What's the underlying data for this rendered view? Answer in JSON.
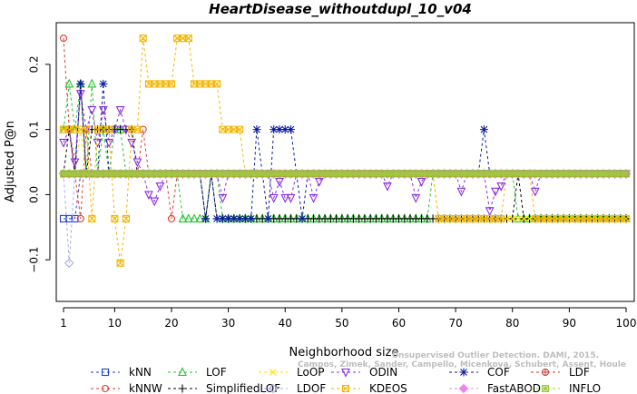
{
  "chart_data": {
    "type": "line",
    "title": "HeartDisease_withoutdupl_10_v04",
    "xlabel": "Neighborhood size",
    "ylabel": "Adjusted P@n",
    "xlim": [
      1,
      100
    ],
    "ylim": [
      -0.15,
      0.25
    ],
    "xticks": [
      1,
      10,
      20,
      30,
      40,
      50,
      60,
      70,
      80,
      90,
      100
    ],
    "yticks": [
      -0.1,
      0.0,
      0.1,
      0.2
    ],
    "ytick_labels": [
      "−0.1",
      "0.0",
      "0.1",
      "0.2"
    ],
    "grid": false,
    "legend_position": "bottom",
    "watermark": [
      "Campos, Zimek, Sander, Campello, Micenkova, Schubert, Assent, Houle",
      "Unsupervised Outlier Detection. DAMI, 2015."
    ],
    "series": [
      {
        "name": "kNN",
        "color": "#1f3fd6",
        "marker": "square",
        "segments": [
          [
            1,
            -0.037
          ],
          [
            3,
            -0.037
          ],
          [
            4,
            0.032
          ],
          [
            100,
            0.032
          ]
        ]
      },
      {
        "name": "kNNW",
        "color": "#e03a2a",
        "marker": "circle",
        "segments": [
          [
            1,
            0.24
          ],
          [
            2,
            0.1
          ],
          [
            3,
            0.032
          ],
          [
            4,
            -0.037
          ],
          [
            5,
            0.1
          ],
          [
            6,
            0.032
          ],
          [
            15,
            0.1
          ],
          [
            16,
            0.032
          ],
          [
            19,
            0.032
          ],
          [
            20,
            -0.037
          ],
          [
            21,
            0.032
          ],
          [
            100,
            0.032
          ]
        ]
      },
      {
        "name": "LOF",
        "color": "#21c42b",
        "marker": "triangle",
        "segments": [
          [
            1,
            0.1
          ],
          [
            2,
            0.17
          ],
          [
            3,
            0.1
          ],
          [
            4,
            0.17
          ],
          [
            5,
            0.032
          ],
          [
            6,
            0.17
          ],
          [
            7,
            0.032
          ],
          [
            8,
            0.1
          ],
          [
            9,
            0.032
          ],
          [
            10,
            0.1
          ],
          [
            12,
            0.032
          ],
          [
            20,
            0.032
          ],
          [
            22,
            -0.037
          ],
          [
            26,
            -0.037
          ],
          [
            27,
            0.032
          ],
          [
            29,
            -0.037
          ],
          [
            65,
            -0.037
          ],
          [
            66,
            0.032
          ],
          [
            80,
            0.032
          ],
          [
            81,
            -0.037
          ],
          [
            100,
            -0.037
          ]
        ]
      },
      {
        "name": "SimplifiedLOF",
        "color": "#000000",
        "marker": "plus",
        "segments": [
          [
            1,
            0.032
          ],
          [
            2,
            0.1
          ],
          [
            3,
            0.032
          ],
          [
            4,
            0.17
          ],
          [
            5,
            0.032
          ],
          [
            6,
            0.1
          ],
          [
            13,
            0.1
          ],
          [
            14,
            0.032
          ],
          [
            25,
            0.032
          ],
          [
            26,
            -0.037
          ],
          [
            27,
            0.032
          ],
          [
            28,
            -0.037
          ],
          [
            80,
            -0.037
          ],
          [
            81,
            0.032
          ],
          [
            82,
            -0.037
          ],
          [
            100,
            -0.037
          ]
        ]
      },
      {
        "name": "LoOP",
        "color": "#ffe000",
        "marker": "x",
        "segments": [
          [
            1,
            0.032
          ],
          [
            3,
            0.032
          ],
          [
            4,
            0.1
          ],
          [
            5,
            0.032
          ],
          [
            66,
            0.032
          ],
          [
            67,
            -0.037
          ],
          [
            100,
            -0.037
          ]
        ]
      },
      {
        "name": "LDOF",
        "color": "#a8a8f0",
        "marker": "diamond",
        "segments": [
          [
            1,
            0.032
          ],
          [
            2,
            -0.105
          ],
          [
            3,
            0.032
          ],
          [
            100,
            0.032
          ]
        ]
      },
      {
        "name": "ODIN",
        "color": "#8a2be2",
        "marker": "triangle-down",
        "segments": [
          [
            1,
            0.08
          ],
          [
            2,
            0.1
          ],
          [
            3,
            0.05
          ],
          [
            4,
            0.155
          ],
          [
            5,
            0.1
          ],
          [
            6,
            0.13
          ],
          [
            7,
            0.08
          ],
          [
            8,
            0.13
          ],
          [
            9,
            0.08
          ],
          [
            10,
            0.1
          ],
          [
            11,
            0.13
          ],
          [
            12,
            0.1
          ],
          [
            13,
            0.08
          ],
          [
            14,
            0.05
          ],
          [
            15,
            0.032
          ],
          [
            16,
            0.0
          ],
          [
            17,
            -0.01
          ],
          [
            18,
            0.013
          ],
          [
            19,
            0.032
          ],
          [
            28,
            0.032
          ],
          [
            29,
            -0.005
          ],
          [
            30,
            0.032
          ],
          [
            37,
            0.032
          ],
          [
            38,
            -0.005
          ],
          [
            39,
            0.02
          ],
          [
            40,
            -0.005
          ],
          [
            41,
            -0.005
          ],
          [
            42,
            0.032
          ],
          [
            44,
            0.032
          ],
          [
            45,
            -0.005
          ],
          [
            46,
            0.02
          ],
          [
            47,
            0.032
          ],
          [
            57,
            0.032
          ],
          [
            58,
            0.013
          ],
          [
            59,
            0.032
          ],
          [
            62,
            0.032
          ],
          [
            63,
            -0.005
          ],
          [
            64,
            0.02
          ],
          [
            65,
            0.032
          ],
          [
            70,
            0.032
          ],
          [
            71,
            0.005
          ],
          [
            72,
            0.032
          ],
          [
            75,
            0.032
          ],
          [
            76,
            -0.025
          ],
          [
            77,
            0.005
          ],
          [
            78,
            0.013
          ],
          [
            79,
            0.032
          ],
          [
            83,
            0.032
          ],
          [
            84,
            0.005
          ],
          [
            85,
            0.032
          ],
          [
            100,
            0.032
          ]
        ]
      },
      {
        "name": "KDEOS",
        "color": "#f2b600",
        "marker": "square-x",
        "segments": [
          [
            1,
            0.1
          ],
          [
            5,
            0.1
          ],
          [
            6,
            -0.037
          ],
          [
            7,
            0.1
          ],
          [
            9,
            0.1
          ],
          [
            10,
            -0.037
          ],
          [
            11,
            -0.105
          ],
          [
            12,
            -0.037
          ],
          [
            13,
            0.1
          ],
          [
            14,
            0.1
          ],
          [
            15,
            0.24
          ],
          [
            16,
            0.17
          ],
          [
            20,
            0.17
          ],
          [
            21,
            0.24
          ],
          [
            23,
            0.24
          ],
          [
            24,
            0.17
          ],
          [
            28,
            0.17
          ],
          [
            29,
            0.1
          ],
          [
            32,
            0.1
          ],
          [
            33,
            0.032
          ],
          [
            66,
            0.032
          ],
          [
            67,
            -0.037
          ],
          [
            78,
            -0.037
          ],
          [
            79,
            0.032
          ],
          [
            83,
            0.032
          ],
          [
            84,
            -0.037
          ],
          [
            100,
            -0.037
          ]
        ]
      },
      {
        "name": "COF",
        "color": "#0a1aa0",
        "marker": "asterisk",
        "segments": [
          [
            1,
            0.032
          ],
          [
            3,
            0.032
          ],
          [
            4,
            0.17
          ],
          [
            5,
            0.032
          ],
          [
            7,
            0.032
          ],
          [
            8,
            0.17
          ],
          [
            9,
            0.032
          ],
          [
            25,
            0.032
          ],
          [
            26,
            -0.037
          ],
          [
            27,
            0.032
          ],
          [
            28,
            -0.037
          ],
          [
            34,
            -0.037
          ],
          [
            35,
            0.1
          ],
          [
            36,
            0.032
          ],
          [
            37,
            -0.037
          ],
          [
            38,
            0.1
          ],
          [
            39,
            0.1
          ],
          [
            40,
            0.1
          ],
          [
            41,
            0.1
          ],
          [
            42,
            0.032
          ],
          [
            43,
            -0.037
          ],
          [
            44,
            0.032
          ],
          [
            74,
            0.032
          ],
          [
            75,
            0.1
          ],
          [
            76,
            0.032
          ],
          [
            100,
            0.032
          ]
        ]
      },
      {
        "name": "FastABOD",
        "color": "#ee82ee",
        "marker": "diamond-filled",
        "segments": [
          [
            1,
            0.032
          ],
          [
            100,
            0.032
          ]
        ]
      },
      {
        "name": "LDF",
        "color": "#c23a3a",
        "marker": "circle-plus",
        "segments": [
          [
            1,
            0.032
          ],
          [
            100,
            0.032
          ]
        ]
      },
      {
        "name": "INFLO",
        "color": "#9acd32",
        "marker": "square-star",
        "segments": [
          [
            1,
            0.032
          ],
          [
            100,
            0.032
          ]
        ]
      }
    ]
  }
}
